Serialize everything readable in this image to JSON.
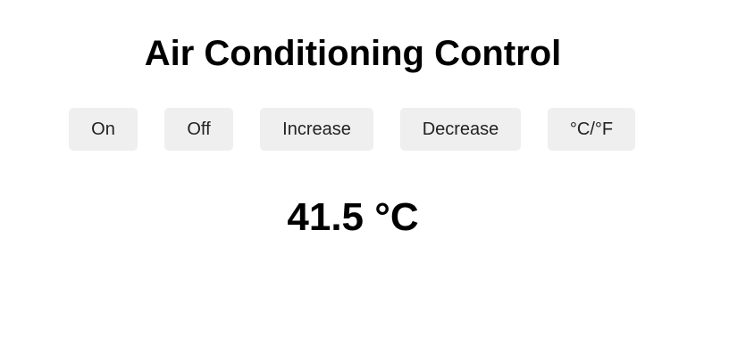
{
  "app": {
    "title": "Air Conditioning Control"
  },
  "controls": {
    "on_label": "On",
    "off_label": "Off",
    "increase_label": "Increase",
    "decrease_label": "Decrease",
    "unit_toggle_label": "°C/°F"
  },
  "display": {
    "temperature_value": "41.5",
    "temperature_unit": "°C",
    "temperature_text": "41.5 °C"
  },
  "colors": {
    "button_background": "#efefef",
    "text": "#000000",
    "background": "#ffffff"
  }
}
